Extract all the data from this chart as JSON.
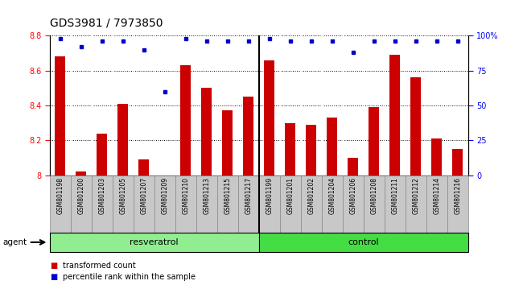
{
  "title": "GDS3981 / 7973850",
  "samples": [
    "GSM801198",
    "GSM801200",
    "GSM801203",
    "GSM801205",
    "GSM801207",
    "GSM801209",
    "GSM801210",
    "GSM801213",
    "GSM801215",
    "GSM801217",
    "GSM801199",
    "GSM801201",
    "GSM801202",
    "GSM801204",
    "GSM801206",
    "GSM801208",
    "GSM801211",
    "GSM801212",
    "GSM801214",
    "GSM801216"
  ],
  "transformed_counts": [
    8.68,
    8.02,
    8.24,
    8.41,
    8.09,
    8.0,
    8.63,
    8.5,
    8.37,
    8.45,
    8.66,
    8.3,
    8.29,
    8.33,
    8.1,
    8.39,
    8.69,
    8.56,
    8.21,
    8.15
  ],
  "percentile_ranks": [
    98,
    92,
    96,
    96,
    90,
    60,
    98,
    96,
    96,
    96,
    98,
    96,
    96,
    96,
    88,
    96,
    96,
    96,
    96,
    96
  ],
  "group_labels": [
    "resveratrol",
    "control"
  ],
  "group_sizes": [
    10,
    10
  ],
  "ylim": [
    8.0,
    8.8
  ],
  "yticks": [
    8.0,
    8.2,
    8.4,
    8.6,
    8.8
  ],
  "right_yticks": [
    0,
    25,
    50,
    75,
    100
  ],
  "right_yticklabels": [
    "0",
    "25",
    "50",
    "75",
    "100%"
  ],
  "bar_color": "#CC0000",
  "dot_color": "#0000CC",
  "tick_bg_color": "#C8C8C8",
  "plot_bg": "#FFFFFF",
  "group_color_resveratrol": "#90EE90",
  "group_color_control": "#44DD44",
  "agent_label": "agent",
  "legend_items": [
    "transformed count",
    "percentile rank within the sample"
  ],
  "title_fontsize": 10,
  "tick_fontsize": 7,
  "label_fontsize": 7
}
